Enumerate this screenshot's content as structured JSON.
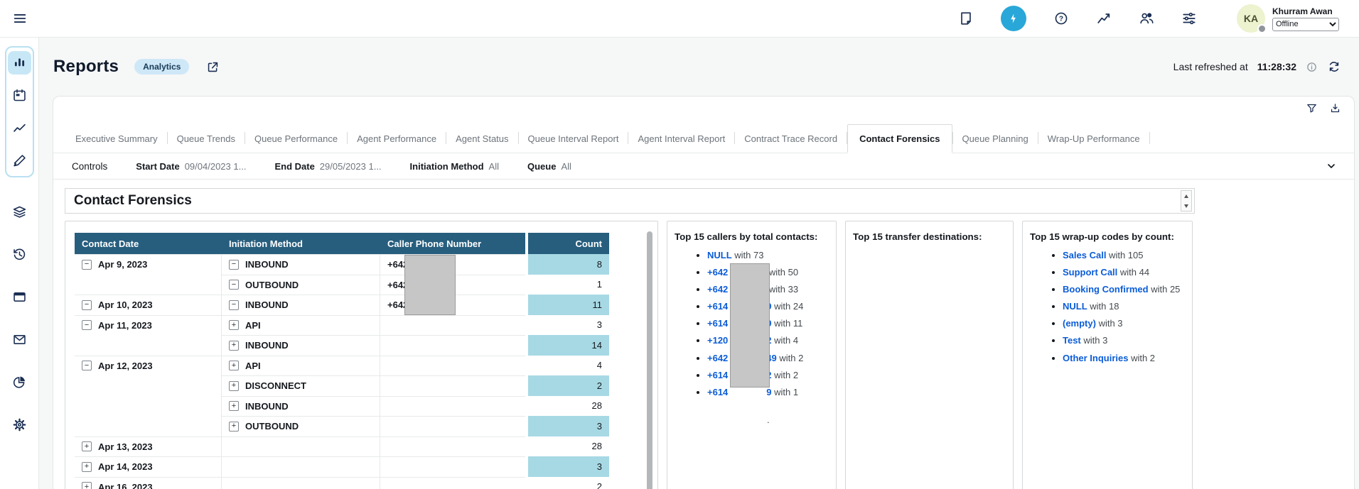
{
  "glyphs": {
    "help": "?",
    "collapse": "−",
    "expand": "+"
  },
  "colors": {
    "accent_blue_circle": "#29a7d8",
    "table_header": "#275e7e",
    "count_highlight": "#a7d9e4",
    "link_blue": "#0b5cd7",
    "badge_bg": "#cfe8f8",
    "sidebar_active_bg": "#c7e7f6",
    "redaction_gray": "#c6c6c6",
    "icon_navy": "#1a2e52"
  },
  "topbar": {
    "icons": [
      "notes-icon",
      "bolt-icon",
      "help-icon",
      "metrics-icon",
      "users-icon",
      "sliders-icon"
    ],
    "user": {
      "name": "Khurram Awan",
      "initials": "KA",
      "status": "Offline"
    }
  },
  "sidebar": {
    "items": [
      "bar-chart (active)",
      "calendar",
      "line-chart",
      "design-brush",
      "layers",
      "history",
      "window",
      "email",
      "pie-chart",
      "settings-gear"
    ]
  },
  "page": {
    "title": "Reports",
    "badge": "Analytics",
    "last_refreshed_label": "Last refreshed at",
    "last_refreshed_time": "11:28:32"
  },
  "tabs": {
    "items": [
      {
        "label": "Executive Summary",
        "active": false
      },
      {
        "label": "Queue Trends",
        "active": false
      },
      {
        "label": "Queue Performance",
        "active": false
      },
      {
        "label": "Agent Performance",
        "active": false
      },
      {
        "label": "Agent Status",
        "active": false
      },
      {
        "label": "Queue Interval Report",
        "active": false
      },
      {
        "label": "Agent Interval Report",
        "active": false
      },
      {
        "label": "Contract Trace Record",
        "active": false
      },
      {
        "label": "Contact Forensics",
        "active": true
      },
      {
        "label": "Queue Planning",
        "active": false
      },
      {
        "label": "Wrap-Up Performance",
        "active": false
      }
    ]
  },
  "controls": {
    "label": "Controls",
    "fields": [
      {
        "label": "Start Date",
        "value": "09/04/2023 1..."
      },
      {
        "label": "End Date",
        "value": "29/05/2023 1..."
      },
      {
        "label": "Initiation Method",
        "value": "All"
      },
      {
        "label": "Queue",
        "value": "All"
      }
    ]
  },
  "section": {
    "title": "Contact Forensics"
  },
  "table": {
    "columns": [
      "Contact Date",
      "Initiation Method",
      "Caller Phone Number",
      "Count"
    ],
    "rows": [
      {
        "date": "Apr 9, 2023",
        "date_toggle": "collapse",
        "method": "INBOUND",
        "method_toggle": "collapse",
        "phone": "+642",
        "phone_masked": true,
        "count": 8,
        "highlight": true
      },
      {
        "date": null,
        "date_toggle": null,
        "method": "OUTBOUND",
        "method_toggle": "collapse",
        "phone": "+642",
        "phone_masked": true,
        "count": 1,
        "highlight": false
      },
      {
        "date": "Apr 10, 2023",
        "date_toggle": "collapse",
        "method": "INBOUND",
        "method_toggle": "collapse",
        "phone": "+642",
        "phone_masked": true,
        "count": 11,
        "highlight": true
      },
      {
        "date": "Apr 11, 2023",
        "date_toggle": "collapse",
        "method": "API",
        "method_toggle": "expand",
        "phone": null,
        "phone_masked": false,
        "count": 3,
        "highlight": false
      },
      {
        "date": null,
        "date_toggle": null,
        "method": "INBOUND",
        "method_toggle": "expand",
        "phone": null,
        "phone_masked": false,
        "count": 14,
        "highlight": true
      },
      {
        "date": "Apr 12, 2023",
        "date_toggle": "collapse",
        "method": "API",
        "method_toggle": "expand",
        "phone": null,
        "phone_masked": false,
        "count": 4,
        "highlight": false
      },
      {
        "date": null,
        "date_toggle": null,
        "method": "DISCONNECT",
        "method_toggle": "expand",
        "phone": null,
        "phone_masked": false,
        "count": 2,
        "highlight": true
      },
      {
        "date": null,
        "date_toggle": null,
        "method": "INBOUND",
        "method_toggle": "expand",
        "phone": null,
        "phone_masked": false,
        "count": 28,
        "highlight": false
      },
      {
        "date": null,
        "date_toggle": null,
        "method": "OUTBOUND",
        "method_toggle": "expand",
        "phone": null,
        "phone_masked": false,
        "count": 3,
        "highlight": true
      },
      {
        "date": "Apr 13, 2023",
        "date_toggle": "expand",
        "method": null,
        "method_toggle": null,
        "phone": null,
        "phone_masked": false,
        "count": 28,
        "highlight": false
      },
      {
        "date": "Apr 14, 2023",
        "date_toggle": "expand",
        "method": null,
        "method_toggle": null,
        "phone": null,
        "phone_masked": false,
        "count": 3,
        "highlight": true
      },
      {
        "date": "Apr 16, 2023",
        "date_toggle": "expand",
        "method": null,
        "method_toggle": null,
        "phone": null,
        "phone_masked": false,
        "count": 2,
        "highlight": false
      }
    ]
  },
  "panels": {
    "callers": {
      "title": "Top 15 callers by total contacts:",
      "footnote": ".",
      "items": [
        {
          "prefix": "NULL",
          "masked": false,
          "suffix": "",
          "count_label": "with 73"
        },
        {
          "prefix": "+642",
          "masked": true,
          "suffix": "",
          "count_label": "with 50"
        },
        {
          "prefix": "+642",
          "masked": true,
          "suffix": "",
          "count_label": "with 33"
        },
        {
          "prefix": "+614",
          "masked": true,
          "suffix": "9",
          "count_label": "with 24"
        },
        {
          "prefix": "+614",
          "masked": true,
          "suffix": "9",
          "count_label": "with 11"
        },
        {
          "prefix": "+120",
          "masked": true,
          "suffix": "2",
          "count_label": "with 4"
        },
        {
          "prefix": "+642",
          "masked": true,
          "suffix": "49",
          "count_label": "with 2"
        },
        {
          "prefix": "+614",
          "masked": true,
          "suffix": "2",
          "count_label": "with 2"
        },
        {
          "prefix": "+614",
          "masked": true,
          "suffix": "9",
          "count_label": "with 1"
        }
      ]
    },
    "transfers": {
      "title": "Top 15 transfer destinations:",
      "items": []
    },
    "wrapups": {
      "title": "Top 15 wrap-up codes by count:",
      "items": [
        {
          "label": "Sales Call",
          "count_label": "with 105"
        },
        {
          "label": "Support Call",
          "count_label": "with 44"
        },
        {
          "label": "Booking Confirmed",
          "count_label": "with 25"
        },
        {
          "label": "NULL",
          "count_label": "with 18"
        },
        {
          "label": "(empty)",
          "count_label": "with 3"
        },
        {
          "label": "Test",
          "count_label": "with 3"
        },
        {
          "label": "Other Inquiries",
          "count_label": "with 2"
        }
      ]
    }
  }
}
